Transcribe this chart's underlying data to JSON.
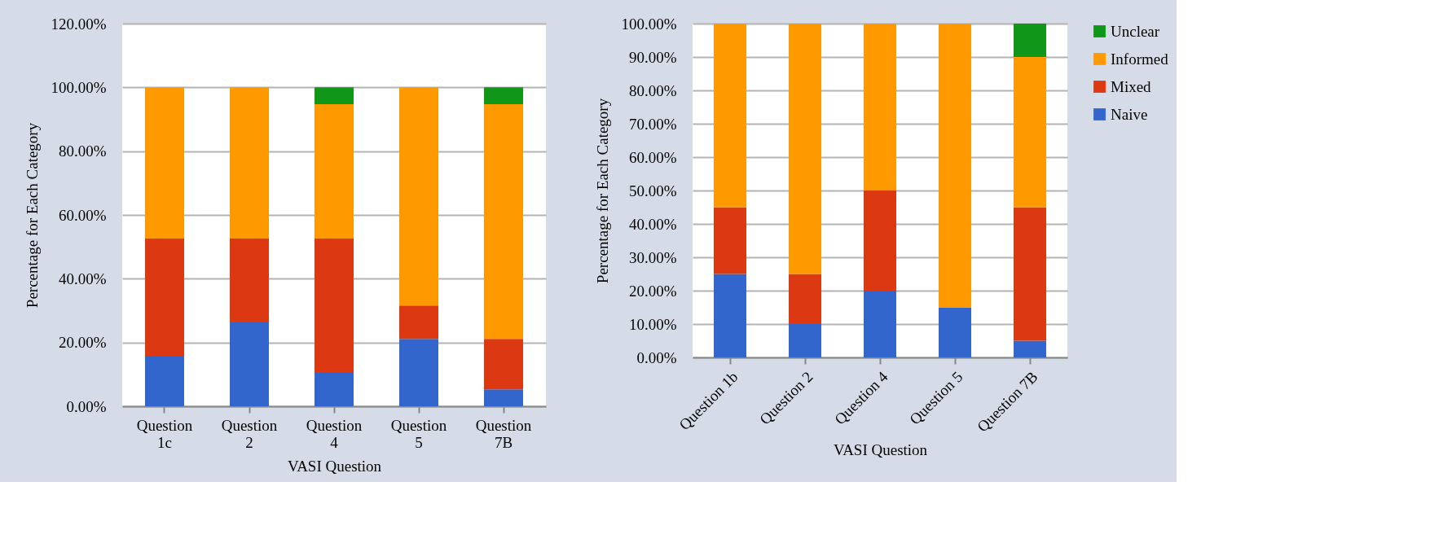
{
  "chart_data": [
    {
      "type": "bar",
      "stacked": true,
      "xlabel": "VASI Question",
      "ylabel": "Percentage for Each Category",
      "categories": [
        "Question 1c",
        "Question 2",
        "Question 4",
        "Question 5",
        "Question 7B"
      ],
      "series": [
        {
          "name": "Naive",
          "color": "#3366cc",
          "values": [
            15.8,
            26.3,
            10.5,
            21.1,
            5.3
          ]
        },
        {
          "name": "Mixed",
          "color": "#dc3912",
          "values": [
            36.8,
            26.3,
            42.1,
            10.5,
            15.8
          ]
        },
        {
          "name": "Informed",
          "color": "#ff9900",
          "values": [
            47.4,
            47.4,
            42.1,
            68.4,
            73.6
          ]
        },
        {
          "name": "Unclear",
          "color": "#109618",
          "values": [
            0,
            0,
            5.3,
            0,
            5.3
          ]
        }
      ],
      "ylim": [
        0,
        120
      ],
      "yticks": [
        {
          "value": 0,
          "label": "0.00%"
        },
        {
          "value": 20,
          "label": "20.00%"
        },
        {
          "value": 40,
          "label": "40.00%"
        },
        {
          "value": 60,
          "label": "60.00%"
        },
        {
          "value": 80,
          "label": "80.00%"
        },
        {
          "value": 100,
          "label": "100.00%"
        },
        {
          "value": 120,
          "label": "120.00%"
        }
      ],
      "grid": "y",
      "legend": "right"
    },
    {
      "type": "bar",
      "stacked": true,
      "xlabel": "VASI Question",
      "ylabel": "Percentage for Each Category",
      "categories": [
        "Question 1b",
        "Question 2",
        "Question 4",
        "Question 5",
        "Question 7B"
      ],
      "series": [
        {
          "name": "Naive",
          "color": "#3366cc",
          "values": [
            25,
            10,
            20,
            15,
            5
          ]
        },
        {
          "name": "Mixed",
          "color": "#dc3912",
          "values": [
            20,
            15,
            30,
            0,
            40
          ]
        },
        {
          "name": "Informed",
          "color": "#ff9900",
          "values": [
            55,
            75,
            50,
            85,
            45
          ]
        },
        {
          "name": "Unclear",
          "color": "#109618",
          "values": [
            0,
            0,
            0,
            0,
            10
          ]
        }
      ],
      "ylim": [
        0,
        100
      ],
      "yticks": [
        {
          "value": 0,
          "label": "0.00%"
        },
        {
          "value": 10,
          "label": "10.00%"
        },
        {
          "value": 20,
          "label": "20.00%"
        },
        {
          "value": 30,
          "label": "30.00%"
        },
        {
          "value": 40,
          "label": "40.00%"
        },
        {
          "value": 50,
          "label": "50.00%"
        },
        {
          "value": 60,
          "label": "60.00%"
        },
        {
          "value": 70,
          "label": "70.00%"
        },
        {
          "value": 80,
          "label": "80.00%"
        },
        {
          "value": 90,
          "label": "90.00%"
        },
        {
          "value": 100,
          "label": "100.00%"
        }
      ],
      "grid": "y",
      "legend": "right"
    }
  ]
}
